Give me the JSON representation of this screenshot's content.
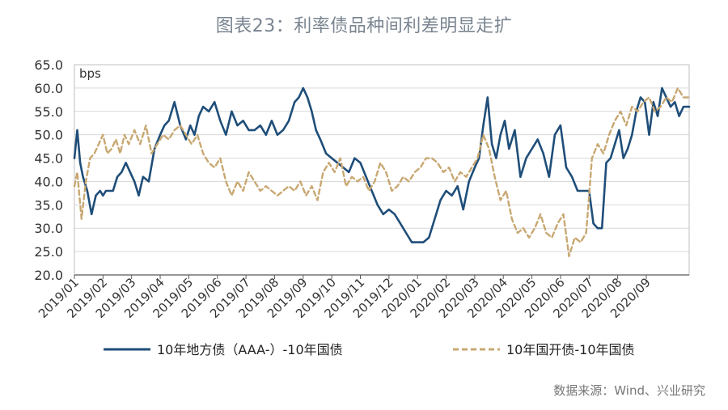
{
  "chart_data": {
    "type": "line",
    "title": "图表23：利率债品种间利差明显走扩",
    "ylabel": "bps",
    "ylim": [
      20,
      65
    ],
    "yticks": [
      "65.0",
      "60.0",
      "55.0",
      "50.0",
      "45.0",
      "40.0",
      "35.0",
      "30.0",
      "25.0",
      "20.0"
    ],
    "ytick_values": [
      65,
      60,
      55,
      50,
      45,
      40,
      35,
      30,
      25,
      20
    ],
    "xlim": [
      0,
      21.5
    ],
    "xticks": [
      "2019/01",
      "2019/02",
      "2019/03",
      "2019/04",
      "2019/05",
      "2019/06",
      "2019/07",
      "2019/08",
      "2019/09",
      "2019/10",
      "2019/11",
      "2019/12",
      "2020/01",
      "2020/02",
      "2020/03",
      "2020/04",
      "2020/05",
      "2020/06",
      "2020/07",
      "2020/08",
      "2020/09"
    ],
    "grid": true,
    "legend_position": "bottom",
    "series": [
      {
        "name": "10年地方债（AAA-）-10年国债",
        "color": "#1f4e79",
        "style": "solid",
        "x": [
          0,
          0.1,
          0.2,
          0.3,
          0.45,
          0.6,
          0.75,
          0.9,
          1.0,
          1.1,
          1.2,
          1.35,
          1.5,
          1.65,
          1.8,
          1.95,
          2.1,
          2.25,
          2.4,
          2.6,
          2.8,
          3.0,
          3.15,
          3.3,
          3.5,
          3.7,
          3.9,
          4.05,
          4.2,
          4.35,
          4.5,
          4.7,
          4.9,
          5.1,
          5.3,
          5.5,
          5.7,
          5.9,
          6.1,
          6.3,
          6.5,
          6.7,
          6.9,
          7.1,
          7.3,
          7.5,
          7.7,
          7.85,
          8.0,
          8.15,
          8.3,
          8.45,
          8.6,
          8.8,
          9.0,
          9.2,
          9.4,
          9.6,
          9.8,
          10.0,
          10.2,
          10.4,
          10.6,
          10.8,
          11.0,
          11.2,
          11.4,
          11.6,
          11.8,
          12.0,
          12.2,
          12.4,
          12.6,
          12.8,
          13.0,
          13.2,
          13.4,
          13.6,
          13.8,
          14.0,
          14.15,
          14.3,
          14.45,
          14.6,
          14.75,
          14.9,
          15.05,
          15.2,
          15.4,
          15.6,
          15.8,
          16.0,
          16.2,
          16.4,
          16.6,
          16.8,
          17.0,
          17.2,
          17.4,
          17.6,
          17.8,
          18.0,
          18.15,
          18.3,
          18.45,
          18.6,
          18.75,
          18.9,
          19.05,
          19.2,
          19.35,
          19.5,
          19.65,
          19.8,
          19.95,
          20.1,
          20.25,
          20.4,
          20.55,
          20.7,
          20.85,
          21.0,
          21.15,
          21.3,
          21.5
        ],
        "values": [
          45,
          51,
          44,
          41,
          38,
          33,
          37,
          38,
          37,
          38,
          38,
          38,
          41,
          42,
          44,
          42,
          40,
          37,
          41,
          40,
          47,
          50,
          52,
          53,
          57,
          52,
          49,
          52,
          50,
          54,
          56,
          55,
          57,
          53,
          50,
          55,
          52,
          53,
          51,
          51,
          52,
          50,
          53,
          50,
          51,
          53,
          57,
          58,
          60,
          58,
          55,
          51,
          49,
          46,
          45,
          44,
          43,
          42,
          45,
          44,
          41,
          38,
          35,
          33,
          34,
          33,
          31,
          29,
          27,
          27,
          27,
          28,
          32,
          36,
          38,
          37,
          39,
          34,
          40,
          43,
          45,
          52,
          58,
          48,
          45,
          50,
          53,
          47,
          51,
          41,
          45,
          47,
          49,
          46,
          41,
          50,
          52,
          43,
          41,
          38,
          38,
          38,
          31,
          30,
          30,
          44,
          45,
          48,
          51,
          45,
          47,
          50,
          55,
          58,
          57,
          50,
          57,
          54,
          60,
          58,
          56,
          57,
          54,
          56,
          56
        ]
      },
      {
        "name": "10年国开债-10年国债",
        "color": "#c8a872",
        "style": "dashed",
        "x": [
          0,
          0.1,
          0.25,
          0.4,
          0.55,
          0.7,
          0.85,
          1.0,
          1.15,
          1.3,
          1.45,
          1.6,
          1.75,
          1.9,
          2.1,
          2.3,
          2.5,
          2.7,
          2.9,
          3.1,
          3.3,
          3.5,
          3.7,
          3.9,
          4.1,
          4.3,
          4.5,
          4.7,
          4.9,
          5.1,
          5.3,
          5.5,
          5.7,
          5.9,
          6.1,
          6.3,
          6.5,
          6.7,
          6.9,
          7.1,
          7.3,
          7.5,
          7.7,
          7.9,
          8.1,
          8.3,
          8.5,
          8.7,
          8.9,
          9.1,
          9.3,
          9.5,
          9.7,
          9.9,
          10.1,
          10.3,
          10.5,
          10.7,
          10.9,
          11.1,
          11.3,
          11.5,
          11.7,
          11.9,
          12.1,
          12.3,
          12.5,
          12.7,
          12.9,
          13.1,
          13.3,
          13.5,
          13.7,
          13.9,
          14.1,
          14.3,
          14.5,
          14.7,
          14.9,
          15.1,
          15.3,
          15.5,
          15.7,
          15.9,
          16.1,
          16.3,
          16.5,
          16.7,
          16.9,
          17.1,
          17.3,
          17.5,
          17.7,
          17.9,
          18.1,
          18.3,
          18.5,
          18.7,
          18.9,
          19.1,
          19.3,
          19.5,
          19.7,
          19.9,
          20.1,
          20.3,
          20.5,
          20.7,
          20.9,
          21.1,
          21.3,
          21.5
        ],
        "values": [
          39,
          42,
          32,
          40,
          45,
          46,
          48,
          50,
          46,
          47,
          49,
          46,
          50,
          48,
          51,
          48,
          52,
          46,
          48,
          50,
          49,
          51,
          52,
          50,
          48,
          50,
          46,
          44,
          43,
          45,
          40,
          37,
          40,
          38,
          42,
          40,
          38,
          39,
          38,
          37,
          38,
          39,
          38,
          40,
          37,
          39,
          36,
          42,
          44,
          42,
          45,
          39,
          41,
          40,
          41,
          38,
          40,
          44,
          42,
          38,
          39,
          41,
          40,
          42,
          43,
          45,
          45,
          44,
          42,
          43,
          40,
          42,
          41,
          43,
          45,
          50,
          47,
          41,
          36,
          38,
          32,
          29,
          30,
          28,
          30,
          33,
          29,
          28,
          31,
          33,
          24,
          28,
          27,
          29,
          45,
          48,
          46,
          50,
          53,
          55,
          52,
          56,
          55,
          57,
          58,
          55,
          56,
          58,
          57,
          60,
          58,
          58
        ]
      }
    ],
    "source": "数据来源：Wind、兴业研究"
  }
}
